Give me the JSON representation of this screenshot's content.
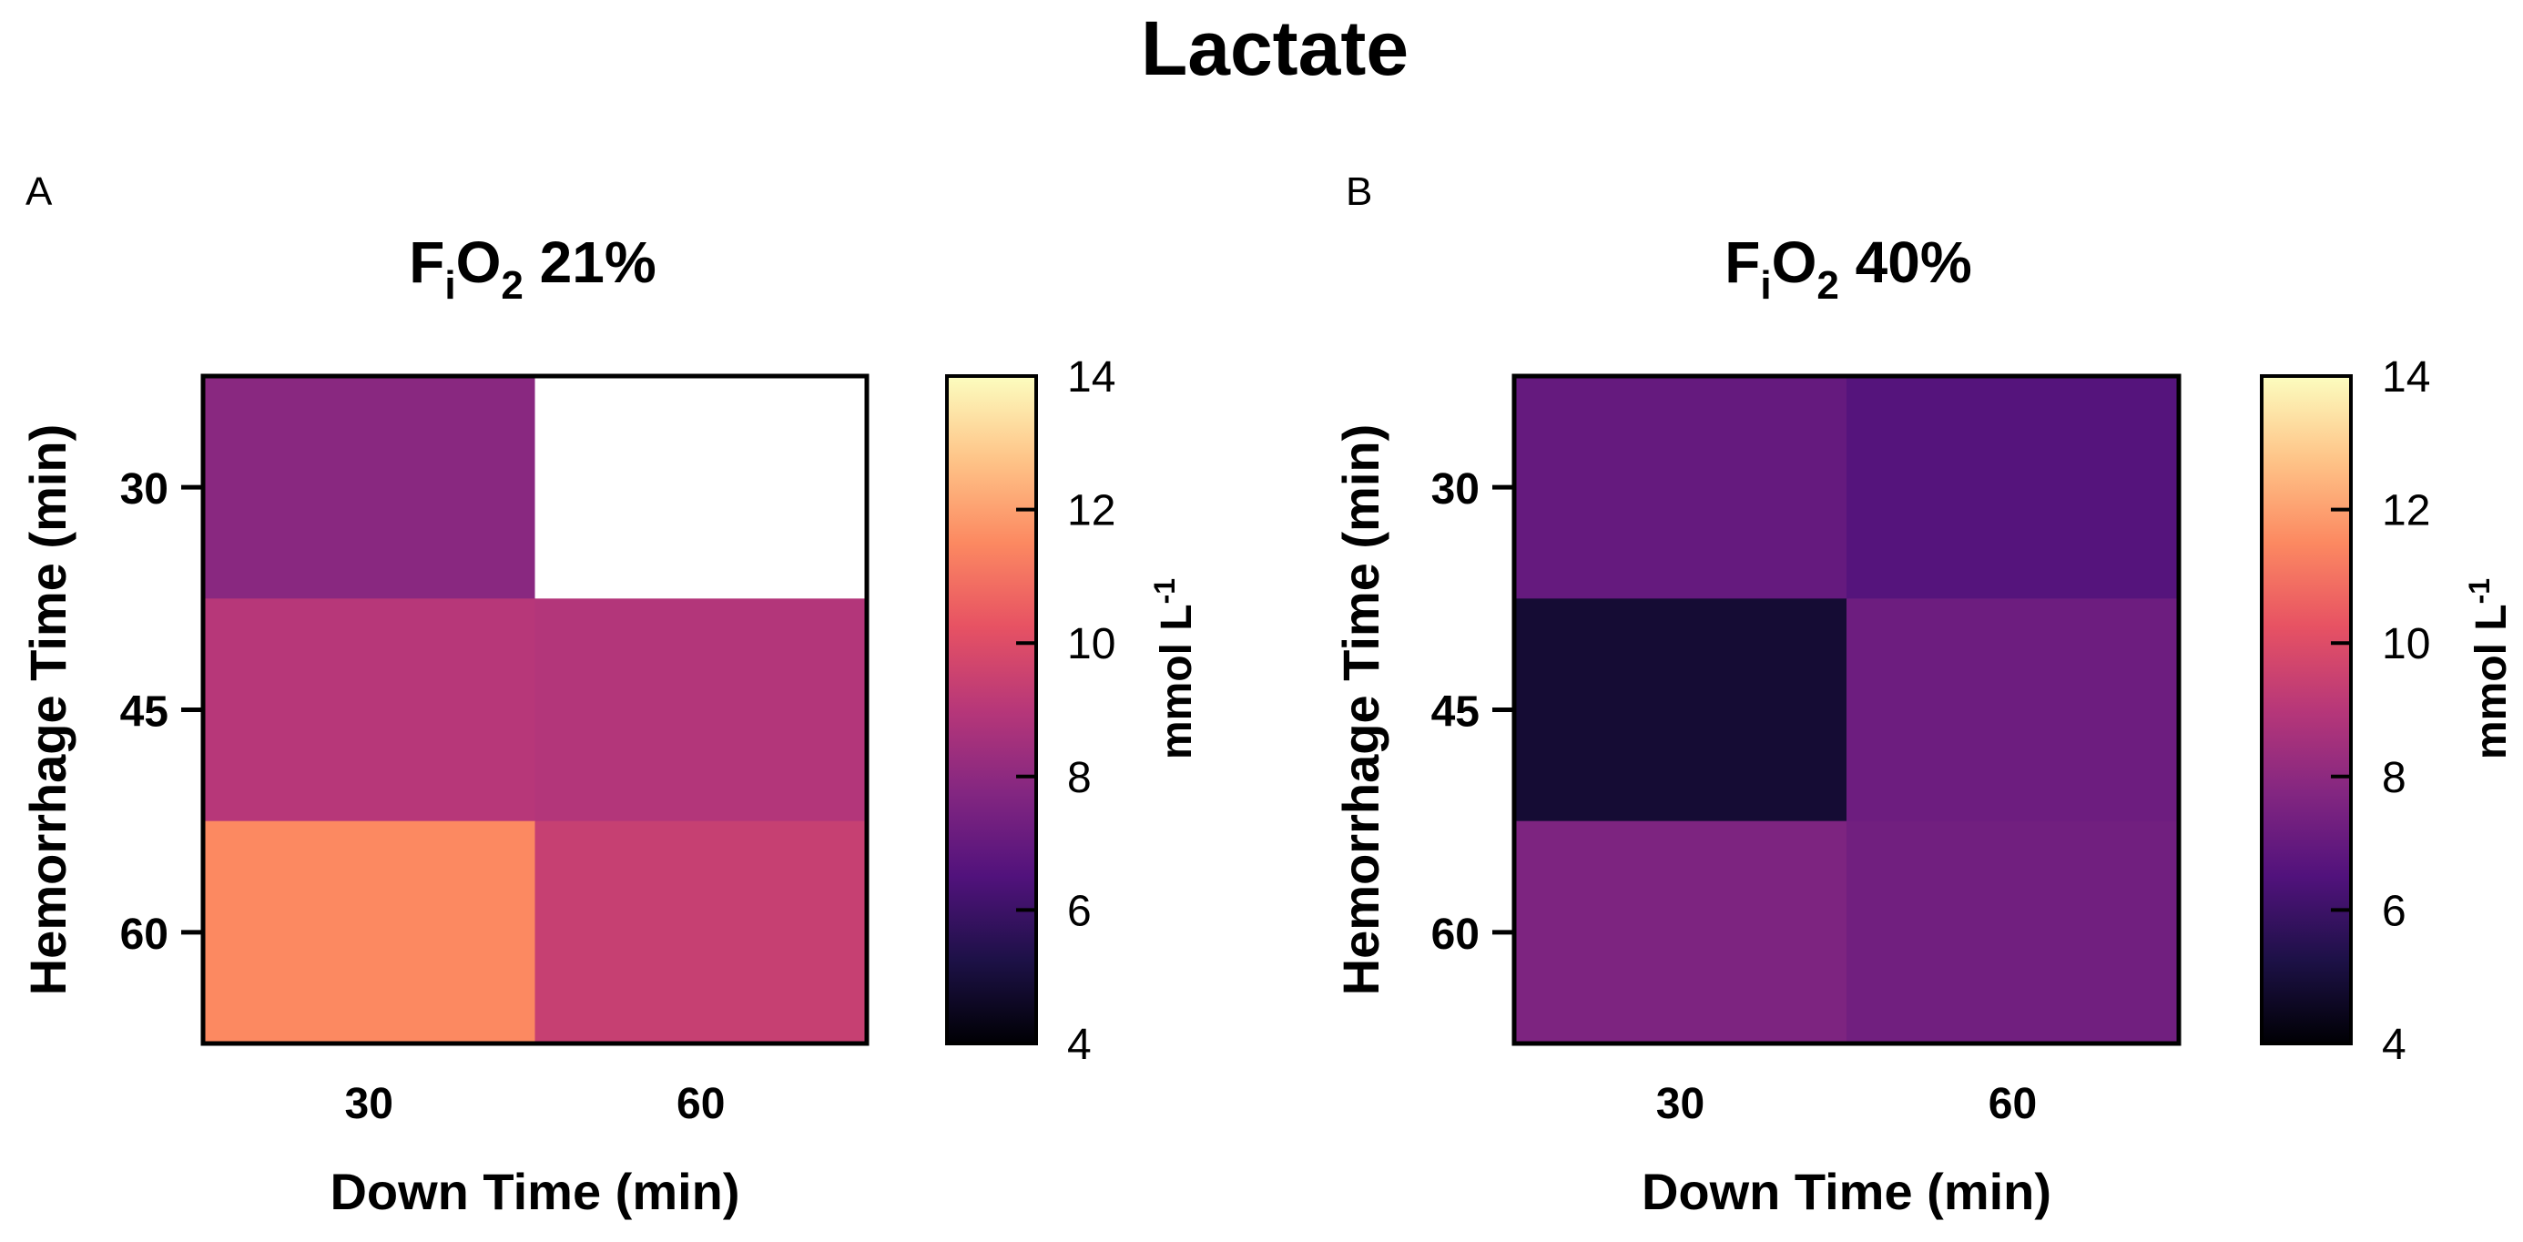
{
  "figure_title": "Lactate",
  "chart_data": [
    {
      "type": "heatmap",
      "panel_label": "A",
      "title": {
        "base": "F",
        "sub1": "i",
        "mid": "O",
        "sub2": "2",
        "tail": " 21%"
      },
      "xlabel": "Down Time (min)",
      "ylabel": "Hemorrhage  Time  (min)",
      "x_categories": [
        "30",
        "60"
      ],
      "y_categories": [
        "30",
        "45",
        "60"
      ],
      "values": [
        [
          7.9,
          null
        ],
        [
          9.0,
          8.9
        ],
        [
          11.5,
          9.4
        ]
      ],
      "missing_color": "#ffffff",
      "colorbar": {
        "label": "mmol L",
        "label_superscript": "-1",
        "min": 4,
        "max": 14,
        "ticks": [
          "4",
          "6",
          "8",
          "10",
          "12",
          "14"
        ],
        "colormap": [
          "#000004",
          "#1d1147",
          "#51127c",
          "#832681",
          "#b73779",
          "#e75263",
          "#fc8961",
          "#fec488",
          "#fcfdbf"
        ]
      }
    },
    {
      "type": "heatmap",
      "panel_label": "B",
      "title": {
        "base": "F",
        "sub1": "i",
        "mid": "O",
        "sub2": "2",
        "tail": " 40%"
      },
      "xlabel": "Down Time (min)",
      "ylabel": "Hemorrhage  Time  (min)",
      "x_categories": [
        "30",
        "60"
      ],
      "y_categories": [
        "30",
        "45",
        "60"
      ],
      "values": [
        [
          7.0,
          6.6
        ],
        [
          4.9,
          7.2
        ],
        [
          7.6,
          7.3
        ]
      ],
      "missing_color": "#ffffff",
      "colorbar": {
        "label": "mmol L",
        "label_superscript": "-1",
        "min": 4,
        "max": 14,
        "ticks": [
          "4",
          "6",
          "8",
          "10",
          "12",
          "14"
        ],
        "colormap": [
          "#000004",
          "#1d1147",
          "#51127c",
          "#832681",
          "#b73779",
          "#e75263",
          "#fc8961",
          "#fec488",
          "#fcfdbf"
        ]
      }
    }
  ]
}
